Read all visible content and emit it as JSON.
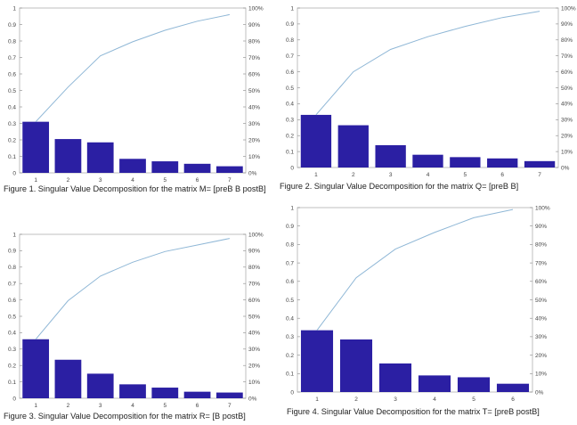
{
  "chart_data": [
    {
      "type": "bar",
      "title": "Figure 1. Singular Value Decomposition for the matrix M= [preB B postB]",
      "categories": [
        "1",
        "2",
        "3",
        "4",
        "5",
        "6",
        "7"
      ],
      "values": [
        0.31,
        0.205,
        0.185,
        0.085,
        0.07,
        0.055,
        0.04
      ],
      "cumulative_pct": [
        31,
        52,
        71,
        79.5,
        86.5,
        92,
        96
      ],
      "ylim": [
        0,
        1
      ],
      "y_ticks": [
        "0",
        "0.1",
        "0.2",
        "0.3",
        "0.4",
        "0.5",
        "0.6",
        "0.7",
        "0.8",
        "0.9",
        "1"
      ],
      "y2lim": [
        0,
        100
      ],
      "y2_ticks": [
        "0%",
        "10%",
        "20%",
        "30%",
        "40%",
        "50%",
        "60%",
        "70%",
        "80%",
        "90%",
        "100%"
      ],
      "bar_color": "#2b1fa3",
      "line_color": "#8fb7d6",
      "grid": false
    },
    {
      "type": "bar",
      "title": "Figure 2. Singular Value Decomposition for the matrix Q= [preB  B]",
      "categories": [
        "1",
        "2",
        "3",
        "4",
        "5",
        "6",
        "7"
      ],
      "values": [
        0.33,
        0.265,
        0.14,
        0.08,
        0.065,
        0.057,
        0.04
      ],
      "cumulative_pct": [
        33,
        60,
        74,
        82,
        88.5,
        94,
        98
      ],
      "ylim": [
        0,
        1
      ],
      "y_ticks": [
        "0",
        "0.1",
        "0.2",
        "0.3",
        "0.4",
        "0.5",
        "0.6",
        "0.7",
        "0.8",
        "0.9",
        "1"
      ],
      "y2lim": [
        0,
        100
      ],
      "y2_ticks": [
        "0%",
        "10%",
        "20%",
        "30%",
        "40%",
        "50%",
        "60%",
        "70%",
        "80%",
        "90%",
        "100%"
      ],
      "bar_color": "#2b1fa3",
      "line_color": "#8fb7d6",
      "grid": false
    },
    {
      "type": "bar",
      "title": "Figure 3. Singular Value Decomposition for the matrix R= [B postB]",
      "categories": [
        "1",
        "2",
        "3",
        "4",
        "5",
        "6",
        "7"
      ],
      "values": [
        0.36,
        0.235,
        0.15,
        0.085,
        0.065,
        0.04,
        0.035
      ],
      "cumulative_pct": [
        36,
        59.5,
        74.5,
        83,
        89.5,
        93.5,
        97.5
      ],
      "ylim": [
        0,
        1
      ],
      "y_ticks": [
        "0",
        "0.1",
        "0.2",
        "0.3",
        "0.4",
        "0.5",
        "0.6",
        "0.7",
        "0.8",
        "0.9",
        "1"
      ],
      "y2lim": [
        0,
        100
      ],
      "y2_ticks": [
        "0%",
        "10%",
        "20%",
        "30%",
        "40%",
        "50%",
        "60%",
        "70%",
        "80%",
        "90%",
        "100%"
      ],
      "bar_color": "#2b1fa3",
      "line_color": "#8fb7d6",
      "grid": false
    },
    {
      "type": "bar",
      "title": "Figure 4. Singular Value Decomposition for the matrix T= [preB postB]",
      "categories": [
        "1",
        "2",
        "3",
        "4",
        "5",
        "6"
      ],
      "values": [
        0.335,
        0.285,
        0.155,
        0.09,
        0.08,
        0.045
      ],
      "cumulative_pct": [
        33.5,
        62,
        77.5,
        86.5,
        94.5,
        99
      ],
      "ylim": [
        0,
        1
      ],
      "y_ticks": [
        "0",
        "0.1",
        "0.2",
        "0.3",
        "0.4",
        "0.5",
        "0.6",
        "0.7",
        "0.8",
        "0.9",
        "1"
      ],
      "y2lim": [
        0,
        100
      ],
      "y2_ticks": [
        "0%",
        "10%",
        "20%",
        "30%",
        "40%",
        "50%",
        "60%",
        "70%",
        "80%",
        "90%",
        "100%"
      ],
      "bar_color": "#2b1fa3",
      "line_color": "#8fb7d6",
      "grid": false
    }
  ]
}
